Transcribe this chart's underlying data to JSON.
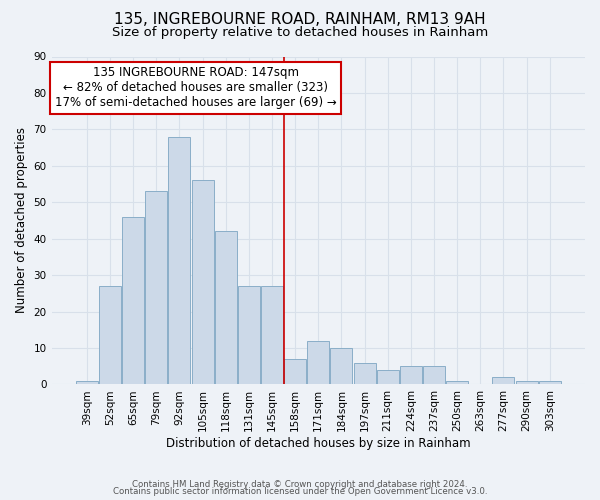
{
  "title": "135, INGREBOURNE ROAD, RAINHAM, RM13 9AH",
  "subtitle": "Size of property relative to detached houses in Rainham",
  "xlabel": "Distribution of detached houses by size in Rainham",
  "ylabel": "Number of detached properties",
  "bar_labels": [
    "39sqm",
    "52sqm",
    "65sqm",
    "79sqm",
    "92sqm",
    "105sqm",
    "118sqm",
    "131sqm",
    "145sqm",
    "158sqm",
    "171sqm",
    "184sqm",
    "197sqm",
    "211sqm",
    "224sqm",
    "237sqm",
    "250sqm",
    "263sqm",
    "277sqm",
    "290sqm",
    "303sqm"
  ],
  "bar_values": [
    1,
    27,
    46,
    53,
    68,
    56,
    42,
    27,
    27,
    7,
    12,
    10,
    6,
    4,
    5,
    5,
    1,
    0,
    2,
    1,
    1
  ],
  "bar_color": "#ccd9e8",
  "bar_edge_color": "#8aaec8",
  "annotation_title": "135 INGREBOURNE ROAD: 147sqm",
  "annotation_line1": "← 82% of detached houses are smaller (323)",
  "annotation_line2": "17% of semi-detached houses are larger (69) →",
  "annotation_box_color": "#ffffff",
  "annotation_box_edge": "#cc0000",
  "vline_color": "#cc0000",
  "vline_x_index": 8.5,
  "ylim": [
    0,
    90
  ],
  "yticks": [
    0,
    10,
    20,
    30,
    40,
    50,
    60,
    70,
    80,
    90
  ],
  "footer_line1": "Contains HM Land Registry data © Crown copyright and database right 2024.",
  "footer_line2": "Contains public sector information licensed under the Open Government Licence v3.0.",
  "bg_color": "#eef2f7",
  "grid_color": "#d8e0ea",
  "title_fontsize": 11,
  "subtitle_fontsize": 9.5,
  "tick_fontsize": 7.5,
  "ylabel_fontsize": 8.5,
  "xlabel_fontsize": 8.5,
  "annotation_fontsize": 8.5,
  "footer_fontsize": 6.2
}
